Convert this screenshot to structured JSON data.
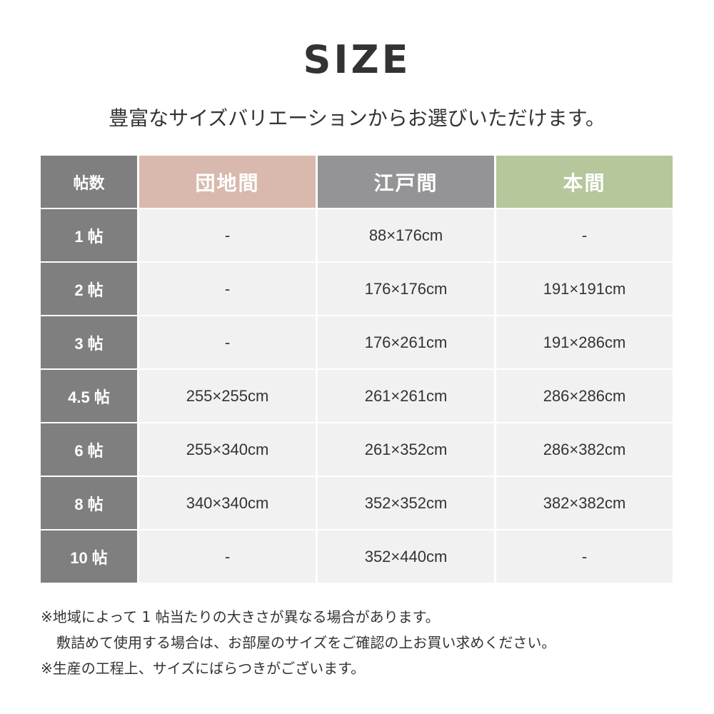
{
  "title": "SIZE",
  "subtitle": "豊富なサイズバリエーションからお選びいただけます。",
  "table": {
    "corner": "帖数",
    "columns": [
      {
        "label": "団地間",
        "color": "#d9b9ad"
      },
      {
        "label": "江戸間",
        "color": "#949396"
      },
      {
        "label": "本間",
        "color": "#b5c79b"
      }
    ],
    "rows": [
      {
        "label": "1 帖",
        "cells": [
          "-",
          "88×176cm",
          "-"
        ]
      },
      {
        "label": "2 帖",
        "cells": [
          "-",
          "176×176cm",
          "191×191cm"
        ]
      },
      {
        "label": "3 帖",
        "cells": [
          "-",
          "176×261cm",
          "191×286cm"
        ]
      },
      {
        "label": "4.5 帖",
        "cells": [
          "255×255cm",
          "261×261cm",
          "286×286cm"
        ]
      },
      {
        "label": "6 帖",
        "cells": [
          "255×340cm",
          "261×352cm",
          "286×382cm"
        ]
      },
      {
        "label": "8 帖",
        "cells": [
          "340×340cm",
          "352×352cm",
          "382×382cm"
        ]
      },
      {
        "label": "10 帖",
        "cells": [
          "-",
          "352×440cm",
          "-"
        ]
      }
    ]
  },
  "notes": [
    "※地域によって 1 帖当たりの大きさが異なる場合があります。",
    "敷詰めて使用する場合は、お部屋のサイズをご確認の上お買い求めください。",
    "※生産の工程上、サイズにばらつきがございます。"
  ]
}
